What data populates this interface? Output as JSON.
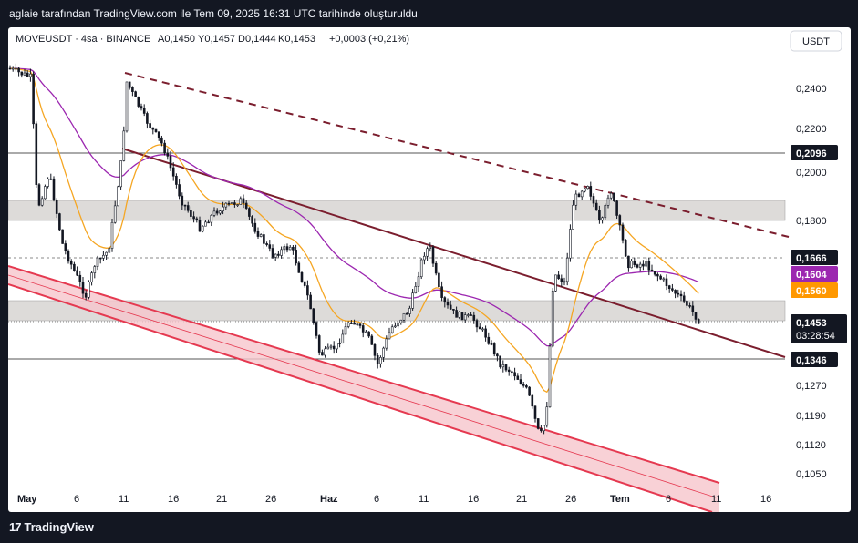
{
  "attribution": "aglaie tarafından TradingView.com ile Tem 09, 2025 16:31 UTC tarihinde oluşturuldu",
  "legend": {
    "symbol": "MOVEUSDT · 4sa · BINANCE",
    "open": "A0,1450",
    "high": "Y0,1457",
    "low": "D0,1444",
    "close": "K0,1453",
    "change": "+0,0003 (+0,21%)"
  },
  "currency_button": "USDT",
  "brand": "TradingView",
  "price_axis": {
    "ticks": [
      "0,2400",
      "0,2200",
      "0,2000",
      "0,1800",
      "0,1270",
      "0,1190",
      "0,1120",
      "0,1050"
    ],
    "marked_levels": [
      {
        "label": "0,2096",
        "bg": "#131722",
        "fg": "#ffffff"
      },
      {
        "label": "0,1666",
        "bg": "#131722",
        "fg": "#ffffff"
      },
      {
        "label": "0,1604",
        "bg": "#9c27b0",
        "fg": "#ffffff"
      },
      {
        "label": "0,1560",
        "bg": "#ff9800",
        "fg": "#ffffff"
      },
      {
        "label": "0,1346",
        "bg": "#131722",
        "fg": "#ffffff"
      }
    ],
    "last_price": {
      "label": "0,1453",
      "countdown": "03:28:54",
      "bg": "#131722",
      "fg": "#ffffff"
    }
  },
  "time_axis": [
    "May",
    "6",
    "11",
    "16",
    "21",
    "26",
    "Haz",
    "6",
    "11",
    "16",
    "21",
    "26",
    "Tem",
    "6",
    "11",
    "16"
  ],
  "colors": {
    "candles": "#131722",
    "ema_fast": "#f5a623",
    "ema_slow": "#9c27b0",
    "trendline": "#7b1e2e",
    "channel": "#e53950",
    "zones": "#d1cfcc"
  },
  "chart_data": {
    "type": "candlestick",
    "title": "MOVEUSDT · 4sa · BINANCE",
    "x_range": [
      "May",
      "16"
    ],
    "y_ticks": [
      "0,2400",
      "0,2200",
      "0,2000",
      "0,1800",
      "0,1270",
      "0,1190",
      "0,1120",
      "0,1050"
    ],
    "horizontal_levels": [
      "0,2096",
      "0,1666",
      "0,1346"
    ],
    "indicators": [
      {
        "label": "0,1604",
        "color": "#9c27b0"
      },
      {
        "label": "0,1560",
        "color": "#ff9800"
      }
    ],
    "last_price": "0,1453",
    "ohlc_last": {
      "open": 0.145,
      "high": 0.1457,
      "low": 0.1444,
      "close": 0.1453
    }
  }
}
